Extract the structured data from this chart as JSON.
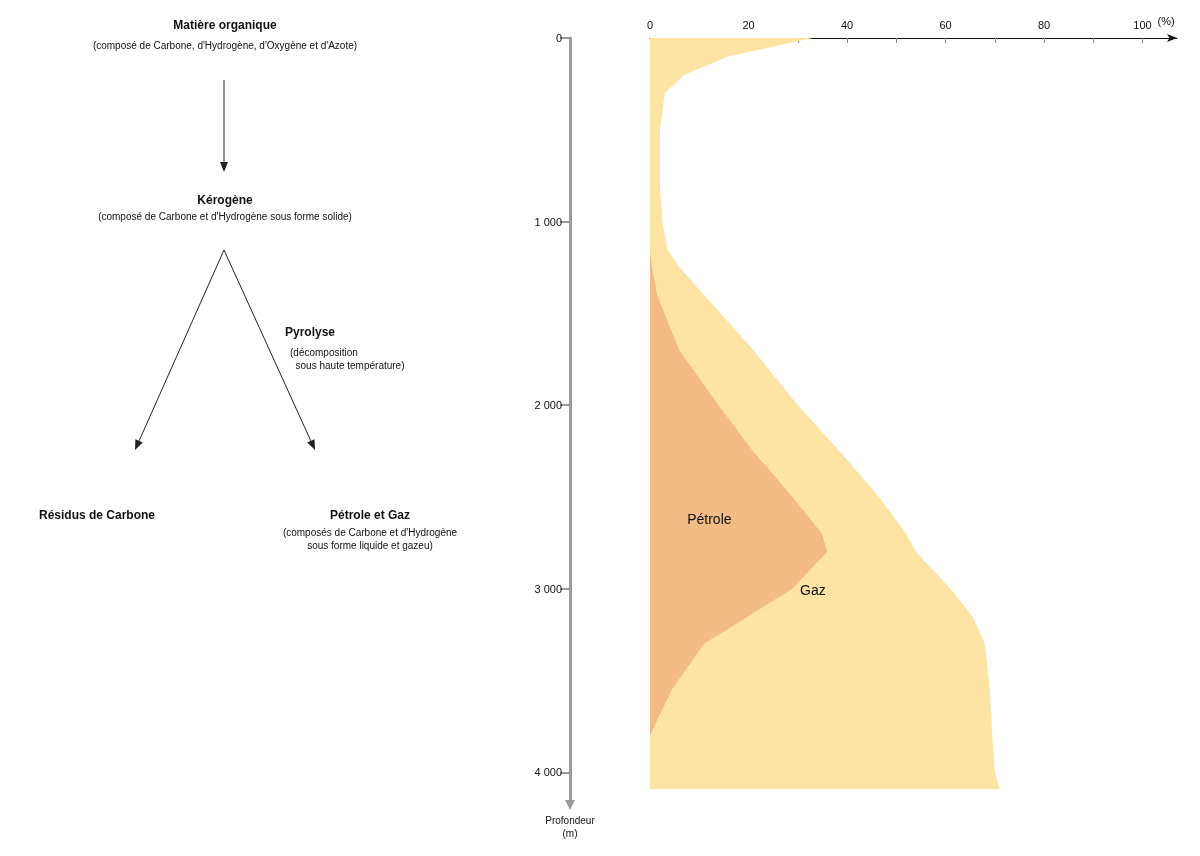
{
  "chart_data": {
    "type": "area",
    "stacked": true,
    "orientation": "horizontal",
    "xlabel": "(%)",
    "ylabel": "Profondeur\n(m)",
    "x": [
      0,
      100,
      200,
      300,
      500,
      800,
      1000,
      1150,
      1250,
      1400,
      1700,
      2000,
      2250,
      2500,
      2700,
      2800,
      3000,
      3150,
      3300,
      3550,
      3800,
      4000,
      4090
    ],
    "series": [
      {
        "name": "Pétrole",
        "color": "#f3bc84",
        "values": [
          0,
          0,
          0,
          0,
          0,
          0,
          0,
          0,
          0.5,
          1.5,
          6,
          14,
          21,
          29,
          35,
          36,
          29,
          20,
          11,
          4.5,
          0,
          0,
          0
        ]
      },
      {
        "name": "Gaz",
        "color": "#fde4a4",
        "values": [
          33,
          16,
          7,
          3,
          2,
          2,
          2.5,
          3.5,
          5.5,
          9.5,
          15,
          16,
          17.5,
          17.5,
          17,
          18,
          32,
          45.5,
          57,
          64.5,
          69.5,
          70,
          71
        ]
      }
    ],
    "xlim": [
      0,
      107
    ],
    "xticks": [
      0,
      {
        "value": 10,
        "label": null
      },
      20,
      {
        "value": 30,
        "label": null
      },
      40,
      {
        "value": 50,
        "label": null
      },
      60,
      {
        "value": 70,
        "label": null
      },
      80,
      {
        "value": 90,
        "label": null
      },
      100
    ],
    "ylim": [
      4150,
      0
    ],
    "yticks": [
      0,
      {
        "value": 1000,
        "label": "1 000"
      },
      {
        "value": 2000,
        "label": "2 000"
      },
      {
        "value": 3000,
        "label": "3 000"
      },
      {
        "value": 4000,
        "label": "4 000"
      }
    ],
    "grid": false,
    "legend": false,
    "annotations": [
      "Matière organique",
      "(composé de Carbone, d'Hydrogène, d'Oxygène et d'Azote)",
      "Kérogène",
      "(composé de Carbone et d'Hydrogène sous forme solide)",
      "Pyrolyse",
      "(décomposition\n  sous haute température)",
      "Résidus de Carbone",
      "Pétrole et Gaz",
      "(composés de Carbone et d'Hydrogène\nsous forme liquide et gazeu)"
    ]
  }
}
